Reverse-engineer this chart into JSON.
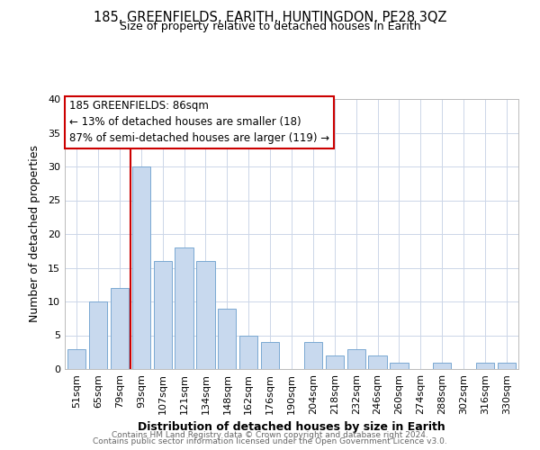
{
  "title": "185, GREENFIELDS, EARITH, HUNTINGDON, PE28 3QZ",
  "subtitle": "Size of property relative to detached houses in Earith",
  "xlabel": "Distribution of detached houses by size in Earith",
  "ylabel": "Number of detached properties",
  "bar_labels": [
    "51sqm",
    "65sqm",
    "79sqm",
    "93sqm",
    "107sqm",
    "121sqm",
    "134sqm",
    "148sqm",
    "162sqm",
    "176sqm",
    "190sqm",
    "204sqm",
    "218sqm",
    "232sqm",
    "246sqm",
    "260sqm",
    "274sqm",
    "288sqm",
    "302sqm",
    "316sqm",
    "330sqm"
  ],
  "bar_heights": [
    3,
    10,
    12,
    30,
    16,
    18,
    16,
    9,
    5,
    4,
    0,
    4,
    2,
    3,
    2,
    1,
    0,
    1,
    0,
    1,
    1
  ],
  "bar_color": "#c8d9ee",
  "bar_edge_color": "#7aa8d2",
  "annotation_title": "185 GREENFIELDS: 86sqm",
  "annotation_line1": "← 13% of detached houses are smaller (18)",
  "annotation_line2": "87% of semi-detached houses are larger (119) →",
  "annotation_box_color": "#ffffff",
  "annotation_box_edge": "#cc0000",
  "red_line_color": "#cc0000",
  "ylim": [
    0,
    40
  ],
  "yticks": [
    0,
    5,
    10,
    15,
    20,
    25,
    30,
    35,
    40
  ],
  "footer1": "Contains HM Land Registry data © Crown copyright and database right 2024.",
  "footer2": "Contains public sector information licensed under the Open Government Licence v3.0.",
  "bg_color": "#ffffff",
  "grid_color": "#ccd6e8",
  "title_fontsize": 10.5,
  "subtitle_fontsize": 9,
  "xlabel_fontsize": 9,
  "ylabel_fontsize": 9,
  "tick_fontsize": 8,
  "annotation_fontsize": 8.5,
  "footer_fontsize": 6.5
}
